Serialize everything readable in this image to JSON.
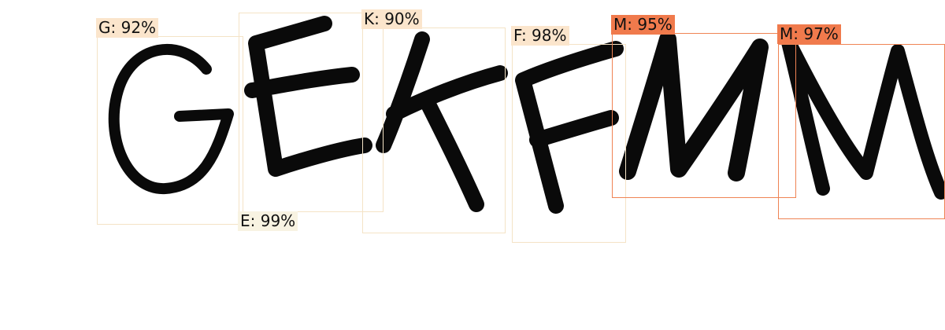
{
  "detections": [
    {
      "label": "G: 92%",
      "letter": "G",
      "confidence": 92
    },
    {
      "label": "E: 99%",
      "letter": "E",
      "confidence": 99
    },
    {
      "label": "K: 90%",
      "letter": "K",
      "confidence": 90
    },
    {
      "label": "F: 98%",
      "letter": "F",
      "confidence": 98
    },
    {
      "label": "M: 95%",
      "letter": "M",
      "confidence": 95
    },
    {
      "label": "M: 97%",
      "letter": "M",
      "confidence": 97
    }
  ],
  "colors": {
    "box_low": "#f4e3c6",
    "box_high": "#ef8354",
    "glyph_ink": "#0a0a0a"
  }
}
